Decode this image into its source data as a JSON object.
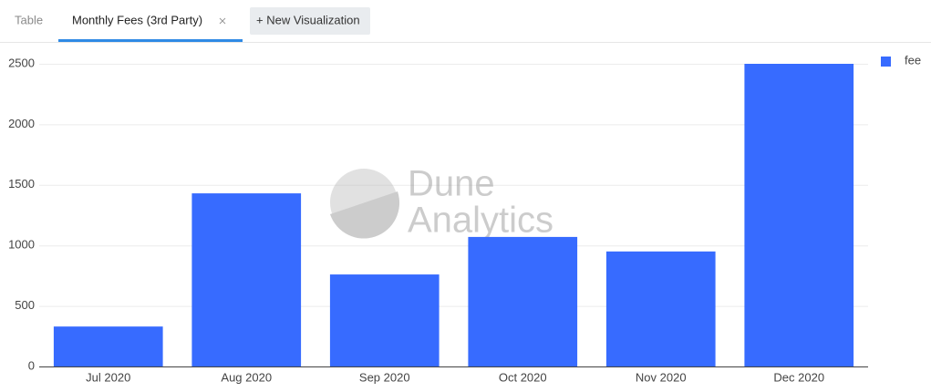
{
  "tabs": [
    "Table",
    "Monthly Fees (3rd Party)",
    "+ New Visualization"
  ],
  "chart_data": {
    "type": "bar",
    "categories": [
      "Jul 2020",
      "Aug 2020",
      "Sep 2020",
      "Oct 2020",
      "Nov 2020",
      "Dec 2020"
    ],
    "series": [
      {
        "name": "fee",
        "color": "#376bff",
        "values": [
          330,
          1430,
          760,
          1070,
          950,
          2500
        ]
      }
    ],
    "ylim": [
      0,
      2500
    ],
    "yticks": [
      0,
      500,
      1000,
      1500,
      2000,
      2500
    ],
    "grid": true,
    "legend": "top-right",
    "watermark": [
      "Dune",
      "Analytics"
    ]
  }
}
